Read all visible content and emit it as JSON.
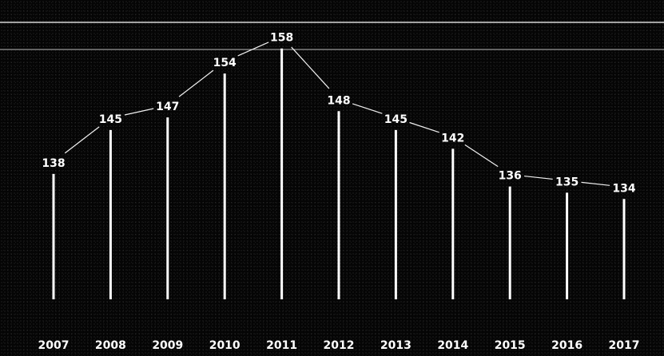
{
  "chart_data": {
    "type": "line",
    "title": "",
    "xlabel": "",
    "ylabel": "",
    "categories": [
      "2007",
      "2008",
      "2009",
      "2010",
      "2011",
      "2012",
      "2013",
      "2014",
      "2015",
      "2016",
      "2017"
    ],
    "series": [
      {
        "values": [
          138,
          145,
          147,
          154,
          158,
          148,
          145,
          142,
          136,
          135,
          134
        ]
      }
    ],
    "ylim": [
      118,
      160
    ],
    "grid": false,
    "legend": "none",
    "colors": {
      "background": "#050505",
      "marks": "#ffffff"
    }
  }
}
